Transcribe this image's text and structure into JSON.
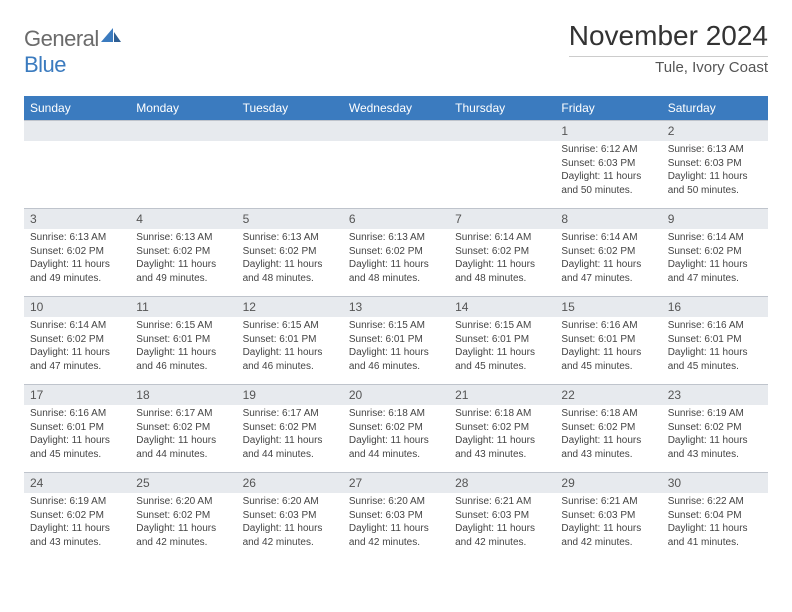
{
  "brand": {
    "name_part1": "General",
    "name_part2": "Blue",
    "icon_color": "#3b7bbf"
  },
  "header": {
    "month_year": "November 2024",
    "location": "Tule, Ivory Coast"
  },
  "colors": {
    "header_row_bg": "#3b7bbf",
    "header_row_text": "#ffffff",
    "day_strip_bg": "#e7eaee"
  },
  "weekdays": [
    "Sunday",
    "Monday",
    "Tuesday",
    "Wednesday",
    "Thursday",
    "Friday",
    "Saturday"
  ],
  "weeks": [
    [
      {
        "day": null
      },
      {
        "day": null
      },
      {
        "day": null
      },
      {
        "day": null
      },
      {
        "day": null
      },
      {
        "day": "1",
        "sunrise": "Sunrise: 6:12 AM",
        "sunset": "Sunset: 6:03 PM",
        "daylight": "Daylight: 11 hours and 50 minutes."
      },
      {
        "day": "2",
        "sunrise": "Sunrise: 6:13 AM",
        "sunset": "Sunset: 6:03 PM",
        "daylight": "Daylight: 11 hours and 50 minutes."
      }
    ],
    [
      {
        "day": "3",
        "sunrise": "Sunrise: 6:13 AM",
        "sunset": "Sunset: 6:02 PM",
        "daylight": "Daylight: 11 hours and 49 minutes."
      },
      {
        "day": "4",
        "sunrise": "Sunrise: 6:13 AM",
        "sunset": "Sunset: 6:02 PM",
        "daylight": "Daylight: 11 hours and 49 minutes."
      },
      {
        "day": "5",
        "sunrise": "Sunrise: 6:13 AM",
        "sunset": "Sunset: 6:02 PM",
        "daylight": "Daylight: 11 hours and 48 minutes."
      },
      {
        "day": "6",
        "sunrise": "Sunrise: 6:13 AM",
        "sunset": "Sunset: 6:02 PM",
        "daylight": "Daylight: 11 hours and 48 minutes."
      },
      {
        "day": "7",
        "sunrise": "Sunrise: 6:14 AM",
        "sunset": "Sunset: 6:02 PM",
        "daylight": "Daylight: 11 hours and 48 minutes."
      },
      {
        "day": "8",
        "sunrise": "Sunrise: 6:14 AM",
        "sunset": "Sunset: 6:02 PM",
        "daylight": "Daylight: 11 hours and 47 minutes."
      },
      {
        "day": "9",
        "sunrise": "Sunrise: 6:14 AM",
        "sunset": "Sunset: 6:02 PM",
        "daylight": "Daylight: 11 hours and 47 minutes."
      }
    ],
    [
      {
        "day": "10",
        "sunrise": "Sunrise: 6:14 AM",
        "sunset": "Sunset: 6:02 PM",
        "daylight": "Daylight: 11 hours and 47 minutes."
      },
      {
        "day": "11",
        "sunrise": "Sunrise: 6:15 AM",
        "sunset": "Sunset: 6:01 PM",
        "daylight": "Daylight: 11 hours and 46 minutes."
      },
      {
        "day": "12",
        "sunrise": "Sunrise: 6:15 AM",
        "sunset": "Sunset: 6:01 PM",
        "daylight": "Daylight: 11 hours and 46 minutes."
      },
      {
        "day": "13",
        "sunrise": "Sunrise: 6:15 AM",
        "sunset": "Sunset: 6:01 PM",
        "daylight": "Daylight: 11 hours and 46 minutes."
      },
      {
        "day": "14",
        "sunrise": "Sunrise: 6:15 AM",
        "sunset": "Sunset: 6:01 PM",
        "daylight": "Daylight: 11 hours and 45 minutes."
      },
      {
        "day": "15",
        "sunrise": "Sunrise: 6:16 AM",
        "sunset": "Sunset: 6:01 PM",
        "daylight": "Daylight: 11 hours and 45 minutes."
      },
      {
        "day": "16",
        "sunrise": "Sunrise: 6:16 AM",
        "sunset": "Sunset: 6:01 PM",
        "daylight": "Daylight: 11 hours and 45 minutes."
      }
    ],
    [
      {
        "day": "17",
        "sunrise": "Sunrise: 6:16 AM",
        "sunset": "Sunset: 6:01 PM",
        "daylight": "Daylight: 11 hours and 45 minutes."
      },
      {
        "day": "18",
        "sunrise": "Sunrise: 6:17 AM",
        "sunset": "Sunset: 6:02 PM",
        "daylight": "Daylight: 11 hours and 44 minutes."
      },
      {
        "day": "19",
        "sunrise": "Sunrise: 6:17 AM",
        "sunset": "Sunset: 6:02 PM",
        "daylight": "Daylight: 11 hours and 44 minutes."
      },
      {
        "day": "20",
        "sunrise": "Sunrise: 6:18 AM",
        "sunset": "Sunset: 6:02 PM",
        "daylight": "Daylight: 11 hours and 44 minutes."
      },
      {
        "day": "21",
        "sunrise": "Sunrise: 6:18 AM",
        "sunset": "Sunset: 6:02 PM",
        "daylight": "Daylight: 11 hours and 43 minutes."
      },
      {
        "day": "22",
        "sunrise": "Sunrise: 6:18 AM",
        "sunset": "Sunset: 6:02 PM",
        "daylight": "Daylight: 11 hours and 43 minutes."
      },
      {
        "day": "23",
        "sunrise": "Sunrise: 6:19 AM",
        "sunset": "Sunset: 6:02 PM",
        "daylight": "Daylight: 11 hours and 43 minutes."
      }
    ],
    [
      {
        "day": "24",
        "sunrise": "Sunrise: 6:19 AM",
        "sunset": "Sunset: 6:02 PM",
        "daylight": "Daylight: 11 hours and 43 minutes."
      },
      {
        "day": "25",
        "sunrise": "Sunrise: 6:20 AM",
        "sunset": "Sunset: 6:02 PM",
        "daylight": "Daylight: 11 hours and 42 minutes."
      },
      {
        "day": "26",
        "sunrise": "Sunrise: 6:20 AM",
        "sunset": "Sunset: 6:03 PM",
        "daylight": "Daylight: 11 hours and 42 minutes."
      },
      {
        "day": "27",
        "sunrise": "Sunrise: 6:20 AM",
        "sunset": "Sunset: 6:03 PM",
        "daylight": "Daylight: 11 hours and 42 minutes."
      },
      {
        "day": "28",
        "sunrise": "Sunrise: 6:21 AM",
        "sunset": "Sunset: 6:03 PM",
        "daylight": "Daylight: 11 hours and 42 minutes."
      },
      {
        "day": "29",
        "sunrise": "Sunrise: 6:21 AM",
        "sunset": "Sunset: 6:03 PM",
        "daylight": "Daylight: 11 hours and 42 minutes."
      },
      {
        "day": "30",
        "sunrise": "Sunrise: 6:22 AM",
        "sunset": "Sunset: 6:04 PM",
        "daylight": "Daylight: 11 hours and 41 minutes."
      }
    ]
  ]
}
